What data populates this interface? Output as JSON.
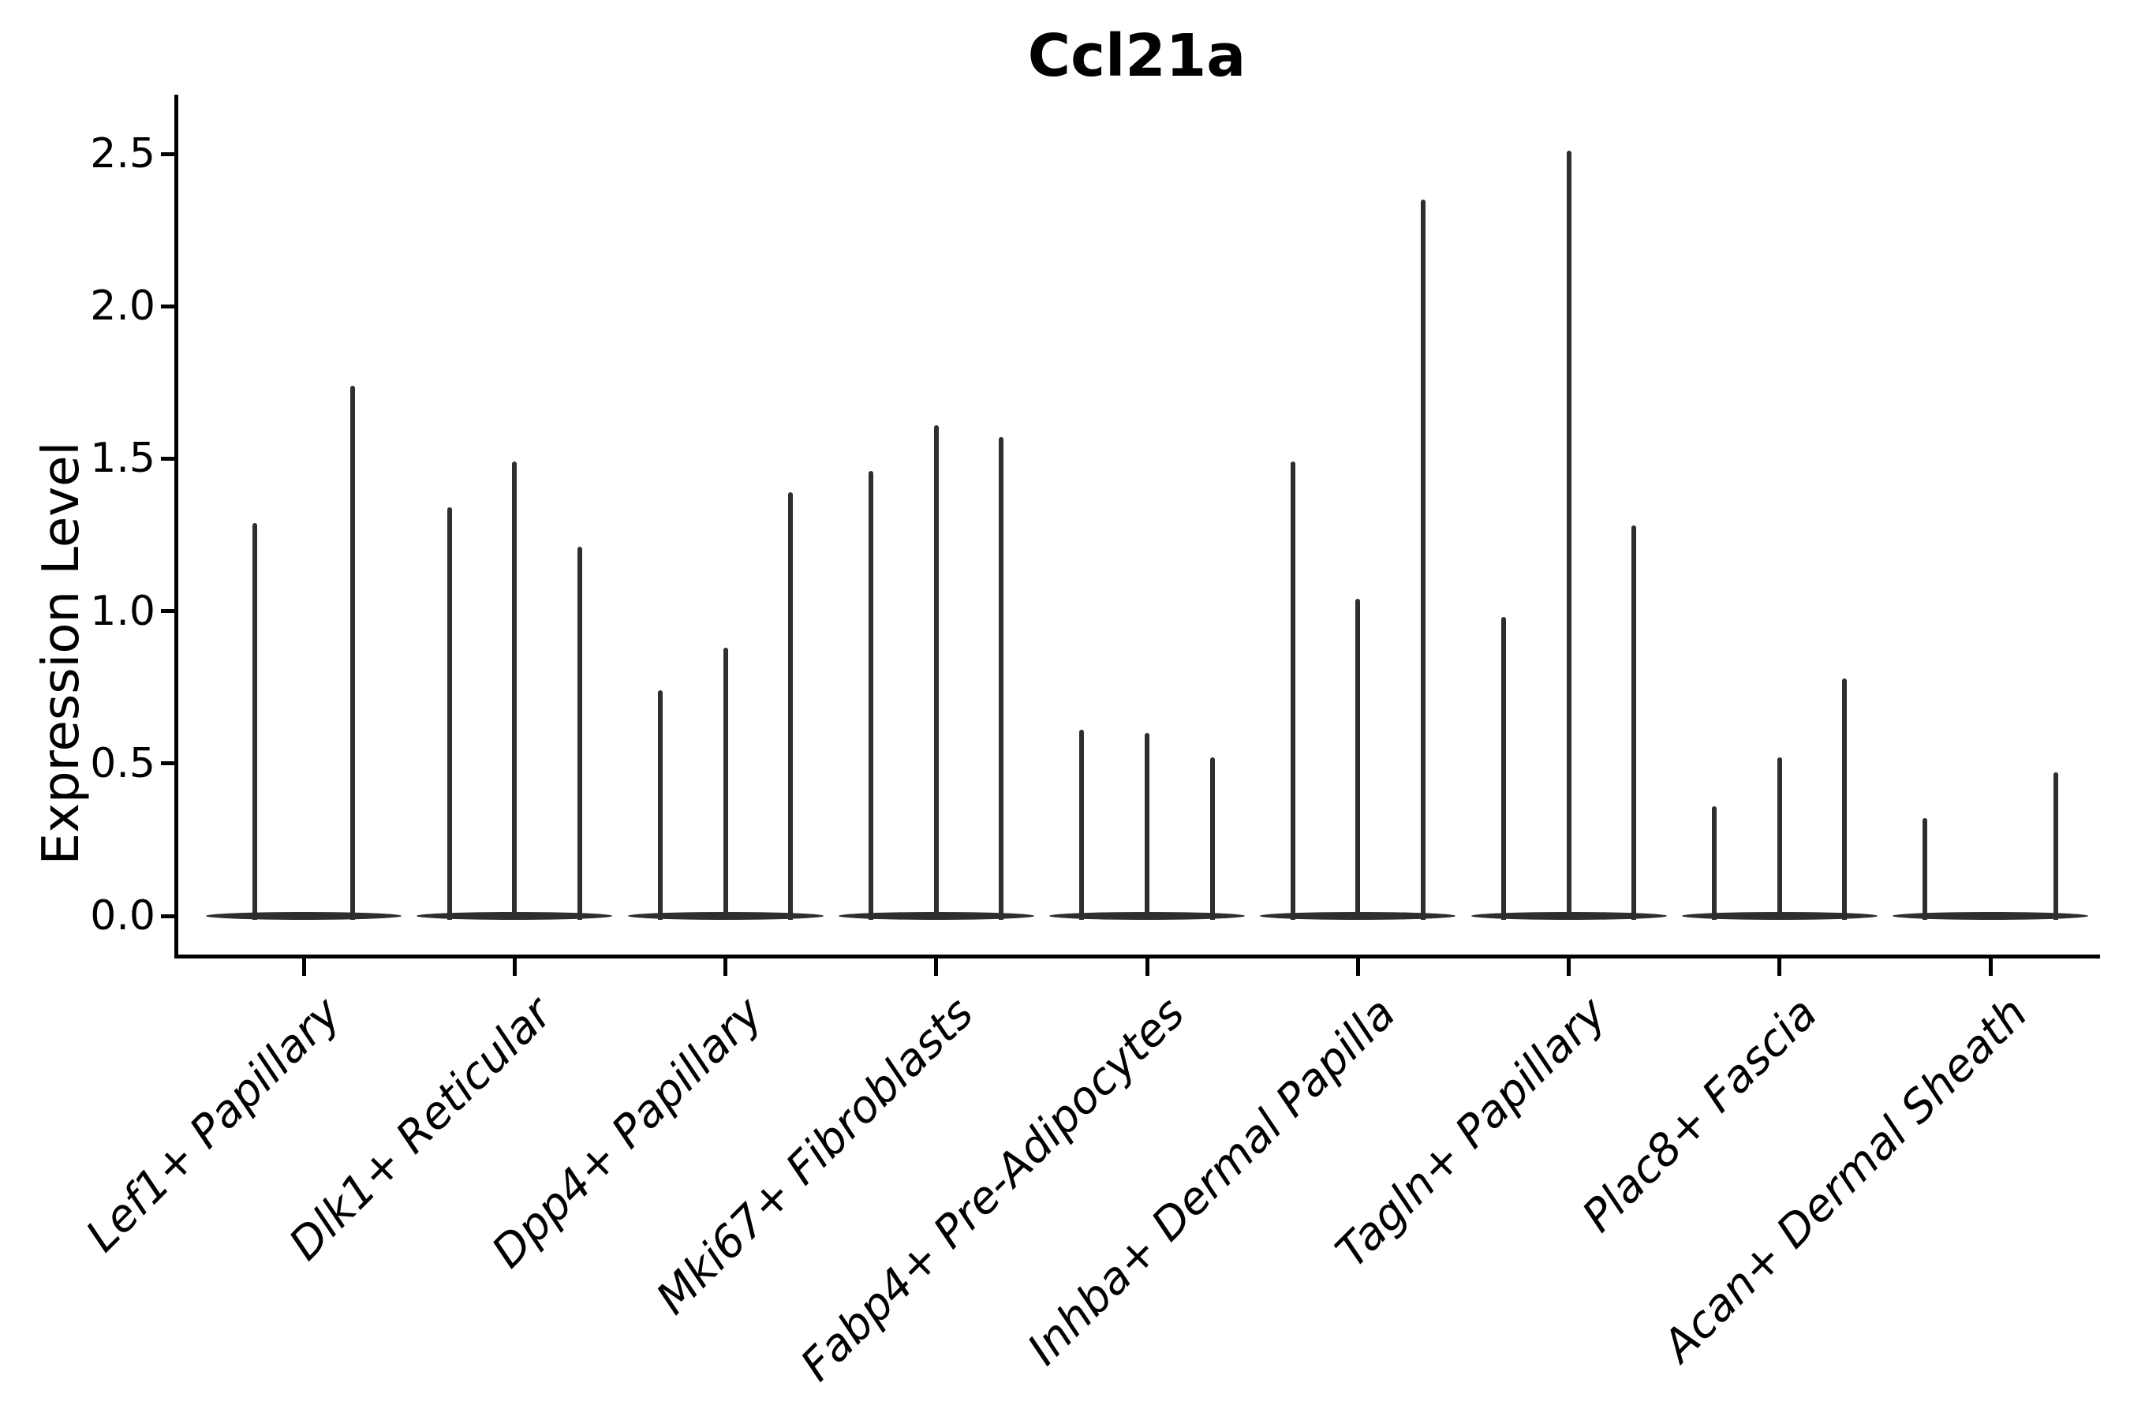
{
  "chart_data": {
    "type": "violin",
    "title": "Ccl21a",
    "ylabel": "Expression Level",
    "xlabel": "",
    "categories": [
      "Lef1+ Papillary",
      "Dlk1+ Reticular",
      "Dpp4+ Papillary",
      "Mki67+ Fibroblasts",
      "Fabp4+ Pre-Adipocytes",
      "Inhba+ Dermal Papilla",
      "Tagln+ Papillary",
      "Plac8+ Fascia",
      "Acan+ Dermal Sheath"
    ],
    "violin_max_expression": [
      [
        1.29,
        1.74
      ],
      [
        1.34,
        1.49,
        1.21
      ],
      [
        0.74,
        0.88,
        1.39
      ],
      [
        1.46,
        1.61,
        1.57
      ],
      [
        0.61,
        0.6,
        0.52
      ],
      [
        1.49,
        1.04,
        2.35
      ],
      [
        0.98,
        2.51,
        1.28
      ],
      [
        0.36,
        0.52,
        0.78
      ],
      [
        0.32,
        0.0,
        0.47
      ]
    ],
    "y_ticks": [
      "0.0",
      "0.5",
      "1.0",
      "1.5",
      "2.0",
      "2.5"
    ],
    "y_tick_values": [
      0.0,
      0.5,
      1.0,
      1.5,
      2.0,
      2.5
    ],
    "ylim": [
      -0.13,
      2.69
    ],
    "grid": false,
    "legend": null,
    "colors": {
      "violin": "#2e2e2e",
      "axis": "#000000",
      "text": "#000000",
      "background": "#ffffff"
    }
  }
}
